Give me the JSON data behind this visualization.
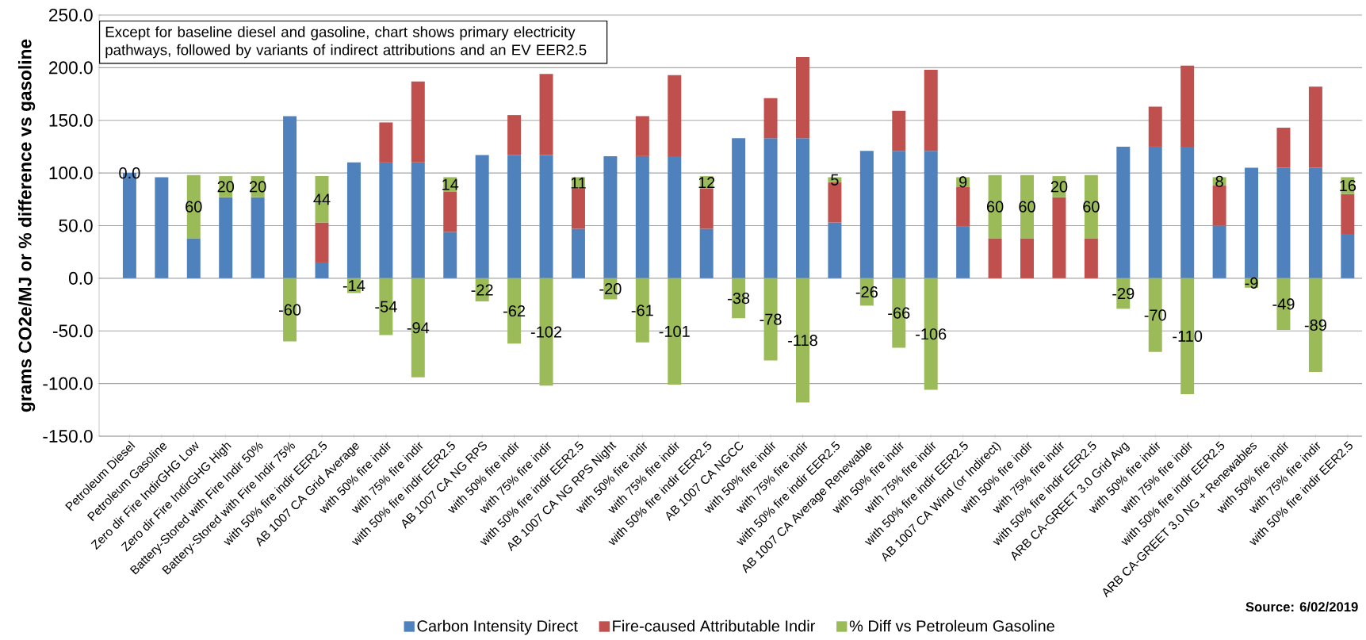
{
  "chart_data": {
    "type": "bar",
    "stacked": true,
    "ylabel": "grams CO2e/MJ or % difference vs gasoline",
    "categories": [
      "Petroleum Diesel",
      "Petroleum Gasoline",
      "Zero dir Fire IndirGHG Low",
      "Zero dir Fire IndirGHG High",
      "Battery-Stored with Fire Indir 50%",
      "Battery-Stored with Fire Indir 75%",
      "with 50% fire indir EER2.5",
      "AB 1007 CA Grid Average",
      "with 50% fire indir",
      "with 75% fire indir",
      "with 50% fire indir EER2.5",
      "AB 1007 CA NG RPS",
      "with 50% fire indir",
      "with 75% fire indir",
      "with 50% fire indir EER2.5",
      "AB 1007 CA NG RPS Night",
      "with 50% fire indir",
      "with 75% fire indir",
      "with 50% fire indir EER2.5",
      "AB 1007 CA NGCC",
      "with 50% fire indir",
      "with 75% fire indir",
      "with 50% fire indir EER2.5",
      "AB 1007 CA Average Renewable",
      "with 50% fire indir",
      "with 75% fire indir",
      "with 50% fire indir EER2.5",
      "AB 1007 CA Wind (or Indirect)",
      "with 50% fire indir",
      "with 75% fire indir",
      "with 50% fire indir EER2.5",
      "ARB CA-GREET 3.0 Grid Avg",
      "with 50% fire indir",
      "with 75% fire indir",
      "with 50% fire indir EER2.5",
      "ARB CA-GREET 3.0 NG + Renewables",
      "with 50% fire indir",
      "with 75% fire indir",
      "with 50% fire indir EER2.5"
    ],
    "series": [
      {
        "name": "Carbon Intensity Direct",
        "color": "#4f81bd",
        "values": [
          100,
          96,
          38,
          77,
          77,
          154,
          15,
          110,
          110,
          110,
          44,
          117,
          117,
          117,
          47,
          116,
          116,
          116,
          47,
          133,
          133,
          133,
          53,
          121,
          121,
          121,
          49,
          null,
          null,
          null,
          null,
          125,
          125,
          125,
          50,
          105,
          105,
          105,
          42
        ]
      },
      {
        "name": "Fire-caused Attributable Indir",
        "color": "#c0504d",
        "values": [
          null,
          null,
          null,
          null,
          null,
          null,
          38,
          null,
          38,
          77,
          38,
          null,
          38,
          77,
          38,
          null,
          38,
          77,
          38,
          null,
          38,
          77,
          38,
          null,
          38,
          77,
          38,
          38,
          38,
          77,
          38,
          null,
          38,
          77,
          38,
          null,
          38,
          77,
          38
        ]
      },
      {
        "name": "% Diff vs Petroleum Gasoline",
        "color": "#9bbb59",
        "values": [
          0,
          null,
          60,
          20,
          20,
          -60,
          44,
          -14,
          -54,
          -94,
          14,
          -22,
          -62,
          -102,
          11,
          -20,
          -61,
          -101,
          12,
          -38,
          -78,
          -118,
          5,
          -26,
          -66,
          -106,
          9,
          60,
          60,
          20,
          60,
          -29,
          -70,
          -110,
          8,
          -9,
          -49,
          -89,
          16
        ],
        "value_labels": [
          "0.0",
          null,
          "60",
          "20",
          "20",
          "-60",
          "44",
          "-14",
          "-54",
          "-94",
          "14",
          "-22",
          "-62",
          "-102",
          "11",
          "-20",
          "-61",
          "-101",
          "12",
          "-38",
          "-78",
          "-118",
          "5",
          "-26",
          "-66",
          "-106",
          "9",
          "60",
          "60",
          "20",
          "60",
          "-29",
          "-70",
          "-110",
          "8",
          "-9",
          "-49",
          "-89",
          "16"
        ]
      }
    ],
    "ylim": [
      -150,
      250
    ],
    "yticks": [
      {
        "value": -150,
        "label": "-150.0"
      },
      {
        "value": -100,
        "label": "-100.0"
      },
      {
        "value": -50,
        "label": "-50.0"
      },
      {
        "value": 0,
        "label": "0.0"
      },
      {
        "value": 50,
        "label": "50.0"
      },
      {
        "value": 100,
        "label": "100.0"
      },
      {
        "value": 150,
        "label": "150.0"
      },
      {
        "value": 200,
        "label": "200.0"
      },
      {
        "value": 250,
        "label": "250.0"
      }
    ],
    "grid": "y",
    "legend": "bottom",
    "annotations": [
      "Except for baseline diesel and gasoline, chart shows primary electricity pathways, followed by variants of indirect attributions and an EV EER2.5",
      "Source: 6/02/2019"
    ]
  }
}
